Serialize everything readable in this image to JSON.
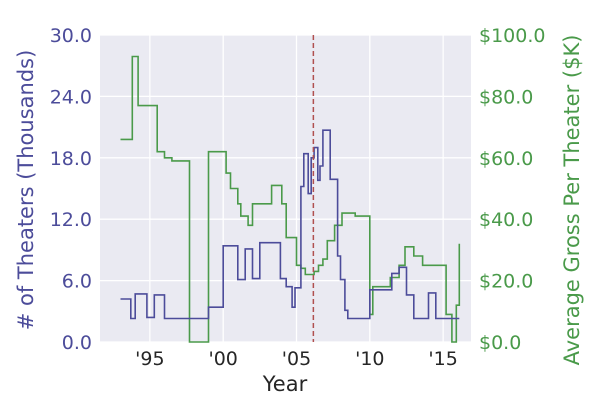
{
  "chart_data": {
    "type": "line",
    "xlabel": "Year",
    "ylabel_left": "# of Theaters (Thousands)",
    "ylabel_right": "Average Gross Per Theater ($K)",
    "xlim": [
      1991.6,
      2016.9
    ],
    "ylim_left": [
      0,
      30
    ],
    "ylim_right": [
      0,
      100
    ],
    "x_ticks": [
      {
        "value": 1995,
        "label": "'95"
      },
      {
        "value": 2000,
        "label": "'00"
      },
      {
        "value": 2005,
        "label": "'05"
      },
      {
        "value": 2010,
        "label": "'10"
      },
      {
        "value": 2015,
        "label": "'15"
      }
    ],
    "y_left_ticks": [
      {
        "value": 0,
        "label": "0.0"
      },
      {
        "value": 6,
        "label": "6.0"
      },
      {
        "value": 12,
        "label": "12.0"
      },
      {
        "value": 18,
        "label": "18.0"
      },
      {
        "value": 24,
        "label": "24.0"
      },
      {
        "value": 30,
        "label": "30.0"
      }
    ],
    "y_right_ticks": [
      {
        "value": 0,
        "label": "$0.0"
      },
      {
        "value": 20,
        "label": "$20.0"
      },
      {
        "value": 40,
        "label": "$40.0"
      },
      {
        "value": 60,
        "label": "$60.0"
      },
      {
        "value": 80,
        "label": "$80.0"
      },
      {
        "value": 100,
        "label": "$100.0"
      }
    ],
    "grid": true,
    "vline": {
      "x": 2006.15,
      "style": "dashed",
      "color": "#b05050"
    },
    "colors": {
      "theaters": "#4c4c9a",
      "gross": "#4a9a4a",
      "background": "#eaeaf2",
      "grid": "#ffffff"
    },
    "series": [
      {
        "axis": "left",
        "step": true,
        "points": [
          [
            1993.0,
            4.2
          ],
          [
            1993.7,
            2.3
          ],
          [
            1994.0,
            4.7
          ],
          [
            1994.8,
            2.4
          ],
          [
            1995.3,
            4.6
          ],
          [
            1996.0,
            2.3
          ],
          [
            1998.0,
            2.3
          ],
          [
            1999.0,
            3.4
          ],
          [
            2000.0,
            9.4
          ],
          [
            2001.0,
            6.1
          ],
          [
            2001.5,
            9.1
          ],
          [
            2002.0,
            6.2
          ],
          [
            2002.5,
            9.7
          ],
          [
            2003.9,
            6.2
          ],
          [
            2004.3,
            5.4
          ],
          [
            2004.7,
            3.4
          ],
          [
            2004.9,
            5.3
          ],
          [
            2005.3,
            15.2
          ],
          [
            2005.5,
            18.4
          ],
          [
            2005.8,
            14.5
          ],
          [
            2006.0,
            18.0
          ],
          [
            2006.2,
            19.0
          ],
          [
            2006.45,
            15.8
          ],
          [
            2006.6,
            17.2
          ],
          [
            2006.8,
            20.7
          ],
          [
            2007.3,
            15.9
          ],
          [
            2007.8,
            8.4
          ],
          [
            2008.0,
            6.1
          ],
          [
            2008.3,
            3.1
          ],
          [
            2008.5,
            2.3
          ],
          [
            2010.0,
            5.1
          ],
          [
            2011.5,
            6.7
          ],
          [
            2012.0,
            7.3
          ],
          [
            2012.5,
            4.6
          ],
          [
            2013.0,
            2.3
          ],
          [
            2014.0,
            4.8
          ],
          [
            2014.5,
            2.3
          ],
          [
            2016.1,
            2.3
          ]
        ]
      },
      {
        "axis": "right",
        "step": true,
        "points": [
          [
            1993.0,
            66
          ],
          [
            1993.8,
            93
          ],
          [
            1994.2,
            77
          ],
          [
            1995.5,
            62
          ],
          [
            1996.0,
            60
          ],
          [
            1996.5,
            59
          ],
          [
            1997.7,
            0
          ],
          [
            1999.0,
            62
          ],
          [
            2000.2,
            55
          ],
          [
            2000.5,
            50
          ],
          [
            2001.0,
            45
          ],
          [
            2001.2,
            41
          ],
          [
            2001.7,
            38
          ],
          [
            2002.0,
            45
          ],
          [
            2003.3,
            51
          ],
          [
            2004.0,
            45
          ],
          [
            2004.3,
            34
          ],
          [
            2005.0,
            25
          ],
          [
            2005.3,
            24
          ],
          [
            2005.6,
            22
          ],
          [
            2006.2,
            23
          ],
          [
            2006.5,
            25
          ],
          [
            2006.8,
            27
          ],
          [
            2007.1,
            33
          ],
          [
            2007.6,
            38
          ],
          [
            2008.1,
            42
          ],
          [
            2009.0,
            41
          ],
          [
            2010.0,
            9
          ],
          [
            2010.2,
            18
          ],
          [
            2011.4,
            21
          ],
          [
            2012.0,
            25
          ],
          [
            2012.4,
            31
          ],
          [
            2013.0,
            28
          ],
          [
            2013.6,
            25
          ],
          [
            2015.2,
            9
          ],
          [
            2015.6,
            0
          ],
          [
            2015.9,
            12
          ],
          [
            2016.1,
            32
          ]
        ]
      }
    ]
  }
}
